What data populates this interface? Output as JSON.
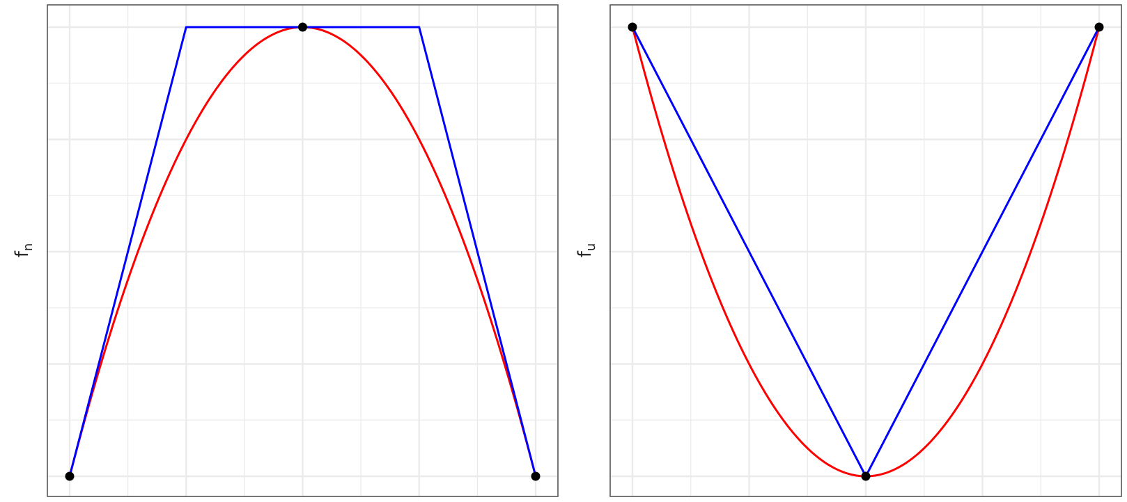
{
  "chart_data": [
    {
      "type": "line",
      "ylabel": "f",
      "ylabel_sub": "n",
      "xlim": [
        -1,
        1
      ],
      "ylim": [
        0,
        1
      ],
      "grid": true,
      "axis_ticks_visible": false,
      "series": [
        {
          "color": "#ff0000",
          "x": [
            -1,
            -0.75,
            -0.5,
            -0.25,
            0,
            0.25,
            0.5,
            0.75,
            1
          ],
          "y": [
            0,
            0.4375,
            0.75,
            0.9375,
            1,
            0.9375,
            0.75,
            0.4375,
            0
          ]
        },
        {
          "color": "#0000ff",
          "x": [
            -1,
            -0.5,
            0.5,
            1
          ],
          "y": [
            0,
            1,
            1,
            0
          ]
        }
      ],
      "points": {
        "color": "#000000",
        "x": [
          -1,
          0,
          1
        ],
        "y": [
          0,
          1,
          0
        ]
      }
    },
    {
      "type": "line",
      "ylabel": "f",
      "ylabel_sub": "u",
      "xlim": [
        -1,
        1
      ],
      "ylim": [
        0,
        1
      ],
      "grid": true,
      "axis_ticks_visible": false,
      "series": [
        {
          "color": "#ff0000",
          "x": [
            -1,
            -0.75,
            -0.5,
            -0.25,
            0,
            0.25,
            0.5,
            0.75,
            1
          ],
          "y": [
            1,
            0.5625,
            0.25,
            0.0625,
            0,
            0.0625,
            0.25,
            0.5625,
            1
          ]
        },
        {
          "color": "#0000ff",
          "x": [
            -1,
            0,
            1
          ],
          "y": [
            1,
            0,
            1
          ]
        }
      ],
      "points": {
        "color": "#000000",
        "x": [
          -1,
          0,
          1
        ],
        "y": [
          1,
          0,
          1
        ]
      }
    }
  ]
}
